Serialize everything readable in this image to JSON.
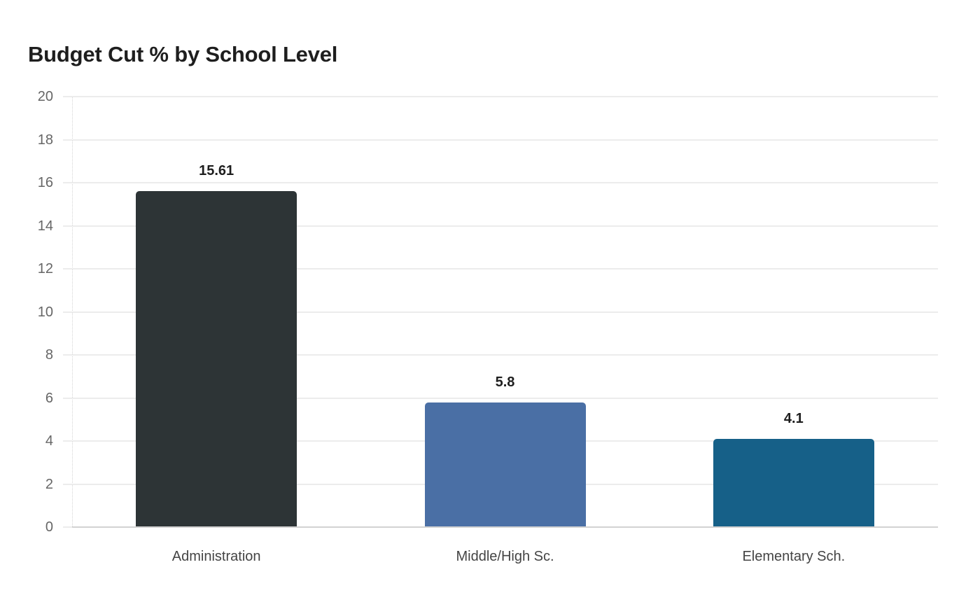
{
  "chart_data": {
    "type": "bar",
    "title": "Budget Cut % by School Level",
    "xlabel": "",
    "ylabel": "",
    "categories": [
      "Administration",
      "Middle/High Sc.",
      "Elementary Sch."
    ],
    "values": [
      15.61,
      5.8,
      4.1
    ],
    "value_labels": [
      "15.61",
      "5.8",
      "4.1"
    ],
    "colors": [
      "#2d3436",
      "#4a6fa5",
      "#166088"
    ],
    "ylim": [
      0,
      20
    ],
    "yticks": [
      0,
      2,
      4,
      6,
      8,
      10,
      12,
      14,
      16,
      18,
      20
    ],
    "ytick_labels": [
      "0",
      "2",
      "4",
      "6",
      "8",
      "10",
      "12",
      "14",
      "16",
      "18",
      "20"
    ],
    "grid": true,
    "legend": null
  }
}
